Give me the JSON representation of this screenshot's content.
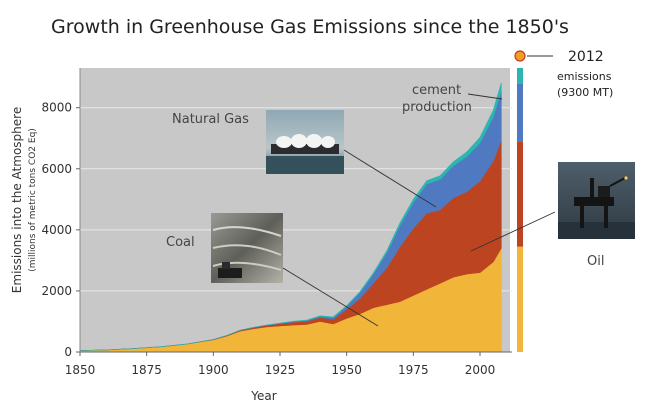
{
  "chart_data": {
    "type": "area",
    "title": "Growth in Greenhouse Gas Emissions since the 1850's",
    "xlabel": "Year",
    "ylabel": "Emissions into the Atmosphere",
    "ylabel_sub": "(millions of metric tons CO2 Eq)",
    "xlim": [
      1850,
      2012
    ],
    "ylim": [
      0,
      9300
    ],
    "x_ticks": [
      "1850",
      "1875",
      "1900",
      "1925",
      "1950",
      "1975",
      "2000"
    ],
    "y_ticks": [
      "0",
      "2000",
      "4000",
      "6000",
      "8000"
    ],
    "x": [
      1850,
      1860,
      1870,
      1880,
      1890,
      1900,
      1905,
      1910,
      1915,
      1920,
      1925,
      1930,
      1935,
      1940,
      1945,
      1950,
      1955,
      1960,
      1965,
      1970,
      1975,
      1980,
      1985,
      1990,
      1995,
      2000,
      2005,
      2008
    ],
    "series": [
      {
        "name": "Coal",
        "color": "#f1b53a",
        "values": [
          50,
          70,
          110,
          170,
          260,
          400,
          520,
          680,
          760,
          820,
          850,
          880,
          900,
          1000,
          920,
          1100,
          1250,
          1450,
          1550,
          1650,
          1850,
          2050,
          2250,
          2450,
          2550,
          2600,
          2950,
          3400
        ]
      },
      {
        "name": "Oil",
        "color": "#bd4420",
        "values": [
          0,
          0,
          0,
          0,
          0,
          10,
          20,
          30,
          45,
          55,
          80,
          100,
          110,
          130,
          150,
          300,
          500,
          800,
          1200,
          1800,
          2200,
          2500,
          2400,
          2600,
          2700,
          3000,
          3300,
          3550
        ]
      },
      {
        "name": "Natural Gas",
        "color": "#4f7ac2",
        "values": [
          0,
          0,
          0,
          0,
          0,
          0,
          0,
          0,
          0,
          5,
          10,
          20,
          25,
          40,
          60,
          100,
          200,
          300,
          500,
          700,
          850,
          950,
          1000,
          1050,
          1150,
          1250,
          1450,
          1600
        ]
      },
      {
        "name": "cement production",
        "color": "#2bb7b0",
        "values": [
          0,
          0,
          0,
          0,
          0,
          0,
          0,
          0,
          0,
          0,
          5,
          8,
          10,
          15,
          18,
          20,
          28,
          40,
          60,
          80,
          100,
          110,
          120,
          130,
          150,
          180,
          220,
          270
        ]
      }
    ],
    "annotations": [
      {
        "id": "natural-gas",
        "text": "Natural Gas"
      },
      {
        "id": "coal",
        "text": "Coal"
      },
      {
        "id": "oil",
        "text": "Oil"
      },
      {
        "id": "cement",
        "lines": [
          "cement",
          "production"
        ]
      },
      {
        "id": "total",
        "year": "2012",
        "lines": [
          "emissions",
          "(9300 MT)"
        ]
      }
    ],
    "side_bar": {
      "segments": [
        {
          "name": "Coal",
          "value": 3450,
          "color": "#f1b53a"
        },
        {
          "name": "Oil",
          "value": 3450,
          "color": "#bd4420"
        },
        {
          "name": "Natural Gas",
          "value": 1900,
          "color": "#4f7ac2"
        },
        {
          "name": "cement production",
          "value": 500,
          "color": "#2bb7b0"
        }
      ],
      "marker_color": "#f0a020"
    },
    "grid": true,
    "plot_background": "#c8c8c8"
  }
}
